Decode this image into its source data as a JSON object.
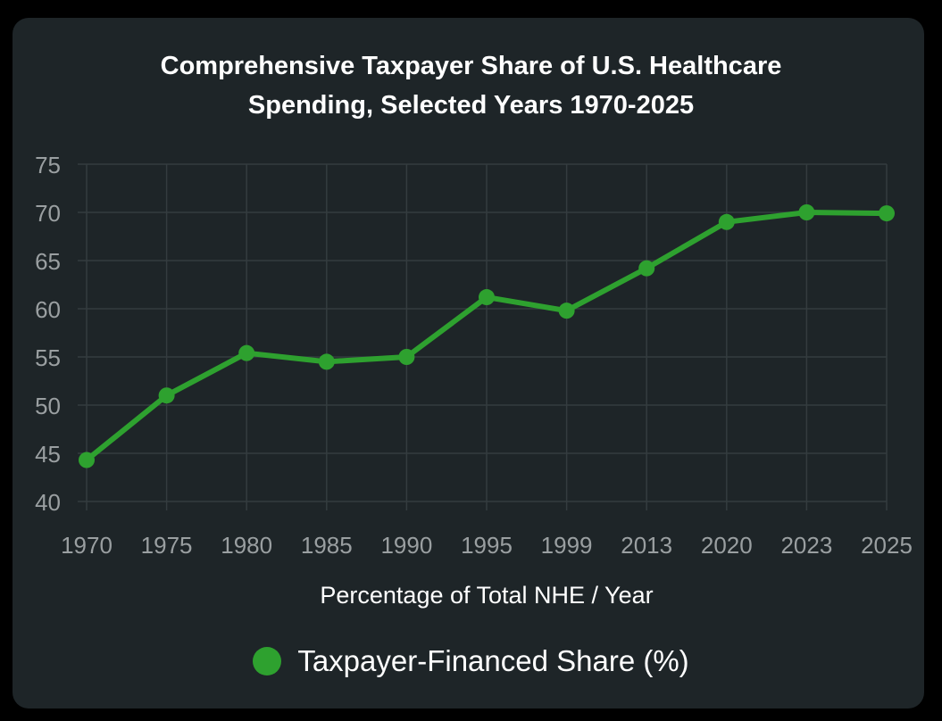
{
  "colors": {
    "background": "#1e2528",
    "series": "#2ea12f",
    "grid": "#343c3f",
    "tick_text": "#9a9fa1",
    "title_text": "#ffffff"
  },
  "chart_data": {
    "type": "line",
    "title_lines": [
      "Comprehensive Taxpayer Share of U.S. Healthcare",
      "Spending, Selected Years 1970-2025"
    ],
    "categories": [
      "1970",
      "1975",
      "1980",
      "1985",
      "1990",
      "1995",
      "1999",
      "2013",
      "2020",
      "2023",
      "2025"
    ],
    "series": [
      {
        "name": "Taxpayer-Financed Share (%)",
        "values": [
          44.3,
          51.0,
          55.4,
          54.5,
          55.0,
          61.2,
          59.8,
          64.2,
          69.0,
          70.0,
          69.9
        ]
      }
    ],
    "xlabel": "Percentage of Total NHE / Year",
    "ylabel": "",
    "ylim": [
      40,
      75
    ],
    "yticks": [
      40,
      45,
      50,
      55,
      60,
      65,
      70,
      75
    ],
    "grid": true,
    "legend": "bottom-center"
  }
}
